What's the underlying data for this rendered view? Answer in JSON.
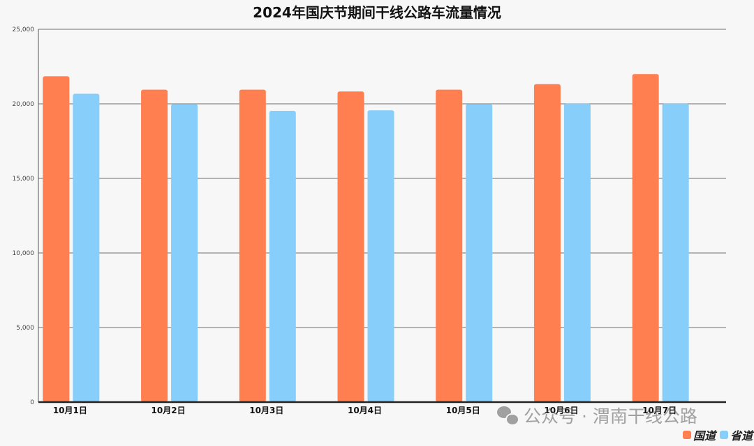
{
  "chart_data": {
    "type": "bar",
    "title": "2024年国庆节期间干线公路车流量情况",
    "categories": [
      "10月1日",
      "10月2日",
      "10月3日",
      "10月4日",
      "10月5日",
      "10月6日",
      "10月7日"
    ],
    "series": [
      {
        "name": "国道",
        "color": "#ff7f50",
        "values": [
          21850,
          20950,
          20950,
          20830,
          20950,
          21320,
          22000
        ]
      },
      {
        "name": "省道",
        "color": "#87cefa",
        "values": [
          20680,
          19980,
          19530,
          19570,
          19980,
          20020,
          20020
        ]
      }
    ],
    "yticks": [
      "0",
      "5,000",
      "10,000",
      "15,000",
      "20,000",
      "25,000"
    ],
    "ylim": [
      0,
      25000
    ],
    "grid": true,
    "legend_position": "bottom-right"
  },
  "watermark": {
    "icon": "wechat-icon",
    "text": "公众号 · 渭南干线公路"
  }
}
